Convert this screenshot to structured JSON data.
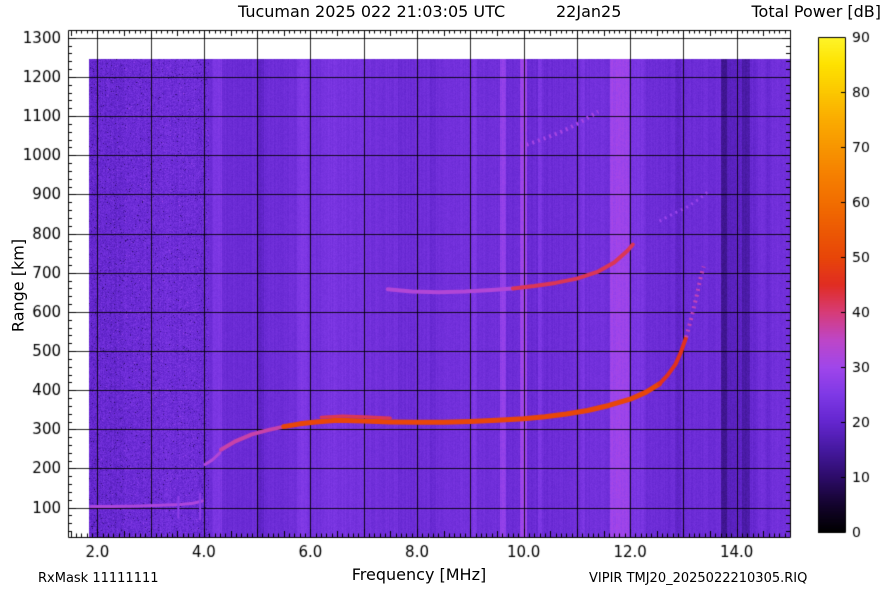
{
  "header": {
    "title": "Tucuman 2025 022 21:03:05 UTC",
    "date_label": "22Jan25",
    "colorbar_title": "Total Power [dB]"
  },
  "footer": {
    "rx_mask": "RxMask 11111111",
    "file_id": "VIPIR  TMJ20_2025022210305.RIQ"
  },
  "chart_data": {
    "type": "heatmap",
    "title": "Tucuman 2025 022 21:03:05 UTC",
    "subtitle": "22Jan25",
    "xlabel": "Frequency [MHz]",
    "ylabel": "Range [km]",
    "axes": {
      "x": {
        "min": 1.45,
        "max": 15.0,
        "tick_values": [
          2,
          4,
          6,
          8,
          10,
          12,
          14
        ],
        "tick_labels": [
          "2.0",
          "4.0",
          "6.0",
          "8.0",
          "10.0",
          "12.0",
          "14.0"
        ],
        "grid_values": [
          2,
          3,
          4,
          5,
          6,
          7,
          8,
          9,
          10,
          11,
          12,
          13,
          14
        ],
        "minor_step": 0.1
      },
      "y": {
        "min": 25,
        "max": 1320,
        "tick_values": [
          100,
          200,
          300,
          400,
          500,
          600,
          700,
          800,
          900,
          1000,
          1100,
          1200,
          1300
        ],
        "tick_labels": [
          "100",
          "200",
          "300",
          "400",
          "500",
          "600",
          "700",
          "800",
          "900",
          "1000",
          "1100",
          "1200",
          "1300"
        ],
        "grid_values": [
          100,
          200,
          300,
          400,
          500,
          600,
          700,
          800,
          900,
          1000,
          1100,
          1200,
          1300
        ],
        "minor_step": 20
      }
    },
    "colorbar": {
      "title": "Total Power [dB]",
      "min": 0,
      "max": 90,
      "tick_values": [
        0,
        10,
        20,
        30,
        40,
        50,
        60,
        70,
        80,
        90
      ],
      "tick_labels": [
        "0",
        "10",
        "20",
        "30",
        "40",
        "50",
        "60",
        "70",
        "80",
        "90"
      ]
    },
    "colormap_stops": [
      [
        0,
        "#000000"
      ],
      [
        5,
        "#14042d"
      ],
      [
        10,
        "#2d0c69"
      ],
      [
        15,
        "#4619a0"
      ],
      [
        20,
        "#6426cf"
      ],
      [
        25,
        "#7f39e6"
      ],
      [
        30,
        "#a046eb"
      ],
      [
        35,
        "#be46c8"
      ],
      [
        40,
        "#d73c78"
      ],
      [
        45,
        "#e12d23"
      ],
      [
        50,
        "#e84609"
      ],
      [
        55,
        "#ed5a04"
      ],
      [
        60,
        "#f26e00"
      ],
      [
        65,
        "#f68000"
      ],
      [
        70,
        "#f89600"
      ],
      [
        75,
        "#fbac00"
      ],
      [
        80,
        "#fcc800"
      ],
      [
        85,
        "#fee200"
      ],
      [
        90,
        "#fff52a"
      ]
    ],
    "background_noise": {
      "base_db": 22.0,
      "col_jitter_db": 1.8,
      "pix_jitter_db": 1.0,
      "low_band_max_mhz": 4.1,
      "low_band_offset_db": -0.7,
      "low_band_pix_jitter_db": 2.6
    },
    "data_region": {
      "f0": 1.85,
      "f1": 15.0,
      "km0": 25,
      "km1": 1245
    },
    "rfi_stripes": [
      {
        "f0": 4.18,
        "f1": 4.34,
        "delta_db": 3
      },
      {
        "f0": 5.02,
        "f1": 5.12,
        "delta_db": -2
      },
      {
        "f0": 5.75,
        "f1": 5.95,
        "delta_db": 2
      },
      {
        "f0": 6.25,
        "f1": 7.65,
        "delta_db": 1.2
      },
      {
        "f0": 8.25,
        "f1": 8.35,
        "delta_db": -1.5
      },
      {
        "f0": 9.05,
        "f1": 9.12,
        "delta_db": 2
      },
      {
        "f0": 9.55,
        "f1": 9.67,
        "delta_db": 6
      },
      {
        "f0": 9.93,
        "f1": 10.06,
        "delta_db": 8
      },
      {
        "f0": 10.28,
        "f1": 10.34,
        "delta_db": 3
      },
      {
        "f0": 11.08,
        "f1": 11.16,
        "delta_db": 2
      },
      {
        "f0": 11.62,
        "f1": 11.97,
        "delta_db": 7
      },
      {
        "f0": 12.0,
        "f1": 12.3,
        "delta_db": 1.5
      },
      {
        "f0": 12.85,
        "f1": 12.95,
        "delta_db": -1.5
      },
      {
        "f0": 13.7,
        "f1": 13.82,
        "delta_db": -8
      },
      {
        "f0": 13.82,
        "f1": 14.1,
        "delta_db": -4
      },
      {
        "f0": 14.1,
        "f1": 14.24,
        "delta_db": -7
      },
      {
        "f0": 14.24,
        "f1": 14.4,
        "delta_db": -2
      },
      {
        "f0": 14.55,
        "f1": 14.65,
        "delta_db": -1.5
      }
    ],
    "traces": [
      {
        "name": "E-region-trace",
        "db": 32,
        "width": 3,
        "dashed": false,
        "points": [
          [
            1.88,
            103
          ],
          [
            2.3,
            103
          ],
          [
            2.8,
            104
          ],
          [
            3.2,
            106
          ],
          [
            3.55,
            108
          ],
          [
            3.8,
            111
          ],
          [
            3.97,
            117
          ]
        ]
      },
      {
        "name": "E-tail-1",
        "db": 27,
        "width": 2,
        "dashed": false,
        "points": [
          [
            3.52,
            128
          ],
          [
            3.52,
            74
          ]
        ]
      },
      {
        "name": "E-tail-2",
        "db": 27,
        "width": 2,
        "dashed": false,
        "points": [
          [
            3.93,
            136
          ],
          [
            3.93,
            70
          ]
        ]
      },
      {
        "name": "F-lead-in",
        "db": 33,
        "width": 3,
        "dashed": false,
        "points": [
          [
            4.02,
            210
          ],
          [
            4.16,
            222
          ],
          [
            4.3,
            240
          ]
        ]
      },
      {
        "name": "F1-rise",
        "db": 37,
        "width": 4,
        "dashed": false,
        "points": [
          [
            4.32,
            248
          ],
          [
            4.6,
            270
          ],
          [
            4.9,
            287
          ],
          [
            5.2,
            298
          ],
          [
            5.5,
            307
          ]
        ]
      },
      {
        "name": "F2-main",
        "db": 50,
        "width": 5,
        "dashed": false,
        "points": [
          [
            5.5,
            307
          ],
          [
            5.8,
            314
          ],
          [
            6.1,
            319
          ],
          [
            6.5,
            323
          ],
          [
            7.0,
            321
          ],
          [
            7.5,
            319
          ],
          [
            8.0,
            318
          ],
          [
            8.5,
            318
          ],
          [
            9.0,
            320
          ],
          [
            9.5,
            323
          ],
          [
            10.0,
            327
          ],
          [
            10.4,
            332
          ],
          [
            10.8,
            339
          ],
          [
            11.2,
            348
          ],
          [
            11.6,
            361
          ],
          [
            12.0,
            377
          ],
          [
            12.3,
            395
          ],
          [
            12.55,
            416
          ]
        ]
      },
      {
        "name": "F2-upper",
        "db": 46,
        "width": 4,
        "dashed": false,
        "points": [
          [
            12.55,
            416
          ],
          [
            12.7,
            438
          ],
          [
            12.85,
            466
          ],
          [
            12.95,
            496
          ],
          [
            13.05,
            535
          ]
        ]
      },
      {
        "name": "F2-asymptote",
        "db": 36,
        "width": 4,
        "dashed": true,
        "points": [
          [
            13.05,
            535
          ],
          [
            13.15,
            585
          ],
          [
            13.25,
            642
          ],
          [
            13.33,
            692
          ],
          [
            13.38,
            716
          ]
        ]
      },
      {
        "name": "F2-double-echo",
        "db": 42,
        "width": 3,
        "dashed": false,
        "points": [
          [
            6.2,
            331
          ],
          [
            6.6,
            334
          ],
          [
            7.0,
            332
          ],
          [
            7.5,
            329
          ]
        ]
      },
      {
        "name": "second-hop-low",
        "db": 33,
        "width": 4,
        "dashed": false,
        "points": [
          [
            7.45,
            658
          ],
          [
            7.9,
            652
          ],
          [
            8.4,
            650
          ],
          [
            8.9,
            652
          ],
          [
            9.4,
            656
          ],
          [
            9.8,
            660
          ]
        ]
      },
      {
        "name": "second-hop-high",
        "db": 42,
        "width": 4,
        "dashed": false,
        "points": [
          [
            9.8,
            660
          ],
          [
            10.2,
            666
          ],
          [
            10.6,
            674
          ],
          [
            11.0,
            685
          ],
          [
            11.4,
            703
          ],
          [
            11.7,
            726
          ],
          [
            11.95,
            756
          ],
          [
            12.05,
            772
          ]
        ]
      },
      {
        "name": "second-hop-asymptote",
        "db": 29,
        "width": 3,
        "dashed": true,
        "points": [
          [
            12.55,
            832
          ],
          [
            12.8,
            850
          ],
          [
            13.05,
            866
          ],
          [
            13.3,
            889
          ],
          [
            13.45,
            906
          ]
        ]
      },
      {
        "name": "third-hop",
        "db": 31,
        "width": 4,
        "dashed": true,
        "points": [
          [
            9.95,
            1022
          ],
          [
            10.25,
            1036
          ],
          [
            10.55,
            1051
          ],
          [
            10.85,
            1069
          ],
          [
            11.15,
            1091
          ],
          [
            11.4,
            1112
          ]
        ]
      }
    ]
  }
}
